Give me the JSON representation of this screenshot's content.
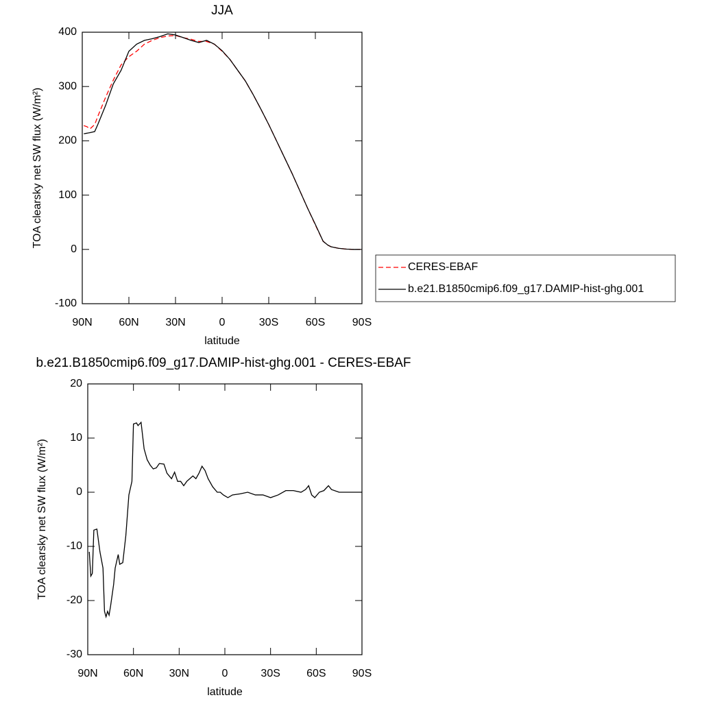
{
  "chart_data": [
    {
      "type": "line",
      "title": "JJA",
      "y_label": "TOA clearsky net SW flux (W/m²)",
      "x_label": "latitude",
      "x": [
        89,
        87,
        85,
        82,
        80,
        75,
        70,
        65,
        60,
        55,
        50,
        45,
        40,
        35,
        30,
        25,
        20,
        15,
        10,
        5,
        0,
        -5,
        -10,
        -15,
        -20,
        -25,
        -30,
        -35,
        -40,
        -45,
        -50,
        -55,
        -60,
        -65,
        -68,
        -70,
        -75,
        -80,
        -85,
        -89
      ],
      "series": [
        {
          "name": "CERES-EBAF",
          "color": "#ff0000",
          "linestyle": "dashed",
          "values": [
            228,
            226,
            222,
            230,
            245,
            280,
            312,
            340,
            355,
            365,
            378,
            385,
            390,
            393,
            394,
            390,
            387,
            383,
            383,
            378,
            365,
            350,
            330,
            310,
            285,
            258,
            230,
            200,
            170,
            140,
            108,
            76,
            45,
            15,
            8,
            5,
            2,
            0.5,
            0,
            0
          ]
        },
        {
          "name": "b.e21.B1850cmip6.f09_g17.DAMIP-hist-ghg.001",
          "color": "#000000",
          "linestyle": "solid",
          "values": [
            213,
            214,
            215,
            217,
            230,
            265,
            305,
            330,
            365,
            378,
            385,
            388,
            392,
            397,
            395,
            390,
            385,
            381,
            385,
            378,
            366,
            350,
            330,
            310,
            285,
            258,
            230,
            200,
            170,
            140,
            108,
            76,
            46,
            15,
            8,
            5,
            2,
            0.5,
            0,
            0
          ]
        }
      ],
      "xlim": [
        90,
        -90
      ],
      "xticks": [
        {
          "value": 90,
          "label": "90N"
        },
        {
          "value": 60,
          "label": "60N"
        },
        {
          "value": 30,
          "label": "30N"
        },
        0,
        {
          "value": -30,
          "label": "30S"
        },
        {
          "value": -60,
          "label": "60S"
        },
        {
          "value": -90,
          "label": "90S"
        }
      ],
      "ylim": [
        -100,
        400
      ],
      "yticks": [
        -100,
        0,
        100,
        200,
        300,
        400
      ],
      "legend": "right"
    },
    {
      "type": "line",
      "title": "b.e21.B1850cmip6.f09_g17.DAMIP-hist-ghg.001 - CERES-EBAF",
      "y_label": "TOA clearsky net SW flux (W/m²)",
      "x_label": "latitude",
      "x": [
        89,
        88,
        87,
        86,
        84,
        82,
        80,
        79,
        78,
        77,
        76,
        75,
        73,
        72,
        70,
        69,
        67,
        65,
        63,
        61,
        60,
        58,
        57,
        55,
        53,
        51,
        49,
        47,
        45,
        43,
        40,
        38,
        35,
        33,
        31,
        29,
        27,
        25,
        23,
        21,
        19,
        17,
        15,
        13,
        11,
        8,
        5,
        3,
        1,
        -2,
        -5,
        -10,
        -15,
        -20,
        -25,
        -30,
        -35,
        -40,
        -45,
        -50,
        -53,
        -55,
        -57,
        -59,
        -62,
        -65,
        -68,
        -70,
        -75,
        -80,
        -85,
        -90
      ],
      "series": [
        {
          "color": "#000000",
          "linestyle": "solid",
          "values": [
            -11,
            -15.5,
            -15,
            -7,
            -6.8,
            -11,
            -14,
            -22,
            -23,
            -22,
            -22.7,
            -21,
            -17,
            -14,
            -11.5,
            -13.3,
            -13,
            -8,
            -0.5,
            2,
            12.6,
            12.8,
            12.3,
            12.9,
            8,
            6,
            5,
            4.3,
            4.5,
            5.3,
            5.2,
            3.5,
            2.5,
            3.7,
            2,
            2,
            1.2,
            2,
            2.5,
            3,
            2.5,
            3.5,
            4.8,
            4,
            2.5,
            1,
            0,
            0,
            -0.5,
            -1,
            -0.5,
            -0.3,
            0,
            -0.5,
            -0.5,
            -1,
            -0.5,
            0.3,
            0.3,
            0,
            0.5,
            1.2,
            -0.5,
            -1,
            0,
            0.3,
            1.2,
            0.5,
            0,
            0,
            0,
            0
          ]
        }
      ],
      "xlim": [
        90,
        -90
      ],
      "xticks": [
        {
          "value": 90,
          "label": "90N"
        },
        {
          "value": 60,
          "label": "60N"
        },
        {
          "value": 30,
          "label": "30N"
        },
        0,
        {
          "value": -30,
          "label": "30S"
        },
        {
          "value": -60,
          "label": "60S"
        },
        {
          "value": -90,
          "label": "90S"
        }
      ],
      "ylim": [
        -30,
        20
      ],
      "yticks": [
        -30,
        -20,
        -10,
        0,
        10,
        20
      ]
    }
  ]
}
